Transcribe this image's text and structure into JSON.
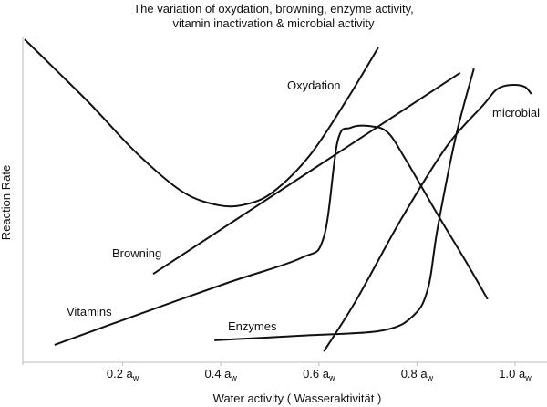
{
  "chart_data": {
    "type": "line",
    "title": [
      "The variation of oxydation, browning, enzyme activity,",
      "vitamin inactivation & microbial activity"
    ],
    "x_label": "Water activity  ( Wasseraktivität )",
    "y_label": "Reaction Rate",
    "xlim": [
      0,
      1.05
    ],
    "ylim": [
      0,
      100
    ],
    "xticks": [
      {
        "value": 0.2,
        "label": "0.2 aw"
      },
      {
        "value": 0.4,
        "label": "0.4 aw"
      },
      {
        "value": 0.6,
        "label": "0.6 aw"
      },
      {
        "value": 0.8,
        "label": "0.8 aw"
      },
      {
        "value": 1.0,
        "label": "1.0 aw"
      }
    ],
    "series": [
      {
        "name": "Oxydation",
        "color": "#111111",
        "x": [
          0,
          0.061,
          0.136,
          0.229,
          0.322,
          0.396,
          0.452,
          0.507,
          0.582,
          0.656,
          0.721
        ],
        "values": [
          98.3,
          89.4,
          78.3,
          63.6,
          51.9,
          47.8,
          48.1,
          51.9,
          63.1,
          79.7,
          95.8
        ]
      },
      {
        "name": "Browning",
        "color": "#111111",
        "x": [
          0.262,
          0.575,
          0.888
        ],
        "values": [
          26.9,
          57.5,
          88.1
        ]
      },
      {
        "name": "Vitamins",
        "color": "#111111",
        "x": [
          0.061,
          0.229,
          0.414,
          0.563,
          0.61,
          0.638,
          0.665,
          0.703,
          0.74,
          0.777,
          0.842,
          0.898,
          0.944
        ],
        "values": [
          5.3,
          14.4,
          24.2,
          31.7,
          38.1,
          67.2,
          71.4,
          71.9,
          70,
          61.7,
          45,
          31.1,
          19.2
        ]
      },
      {
        "name": "Enzymes",
        "color": "#111111",
        "x": [
          0.387,
          0.563,
          0.73,
          0.794,
          0.823,
          0.842,
          0.879,
          0.916
        ],
        "values": [
          6.7,
          8.1,
          9.7,
          14.4,
          22.8,
          40.8,
          68.6,
          89.4
        ]
      },
      {
        "name": "microbial",
        "color": "#111111",
        "x": [
          0.61,
          0.675,
          0.768,
          0.861,
          0.935,
          0.963,
          0.991,
          1.019,
          1.033
        ],
        "values": [
          3.3,
          18.6,
          43.6,
          65.8,
          78.3,
          83.1,
          84.4,
          83.9,
          81.7
        ]
      }
    ]
  }
}
